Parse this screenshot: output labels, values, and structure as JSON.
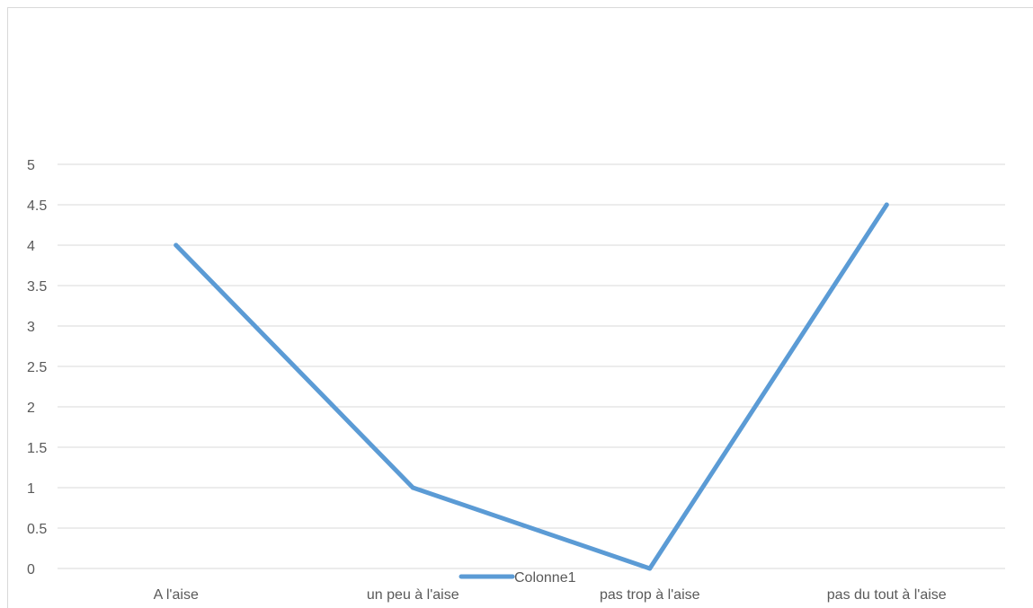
{
  "chart_data": {
    "type": "line",
    "title": "",
    "xlabel": "",
    "ylabel": "",
    "categories": [
      "A l'aise",
      "un peu à l'aise",
      "pas trop à l'aise",
      "pas du tout à l'aise"
    ],
    "series": [
      {
        "name": "Colonne1",
        "values": [
          4,
          1,
          0,
          4.5
        ],
        "color": "#5b9bd5"
      }
    ],
    "ylim": [
      0,
      5
    ],
    "yticks": [
      "0",
      "0.5",
      "1",
      "1.5",
      "2",
      "2.5",
      "3",
      "3.5",
      "4",
      "4.5",
      "5"
    ],
    "grid": true,
    "legend_position": "bottom",
    "gridline_color": "#d9d9d9",
    "text_color": "#595959"
  }
}
